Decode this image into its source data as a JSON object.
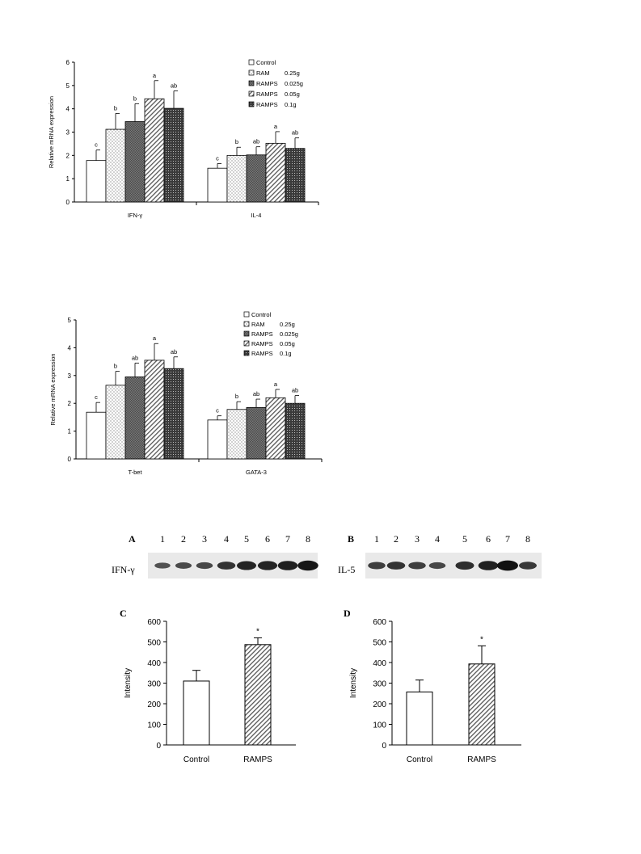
{
  "colors": {
    "axis": "#000000",
    "band": "#111111",
    "blot_bg": "#e9e9e9"
  },
  "chart_data": [
    {
      "id": "top",
      "type": "bar",
      "ylabel": "Relative mRNA expression",
      "ylim": [
        0,
        6
      ],
      "yticks": [
        "0",
        "1",
        "2",
        "3",
        "4",
        "5",
        "6"
      ],
      "categories": [
        "IFN-γ",
        "IL-4"
      ],
      "legend_position": "top-right",
      "series": [
        {
          "name": "Control",
          "dose": "",
          "pattern": "white",
          "values": [
            1.78,
            1.45
          ],
          "errors": [
            0.45,
            0.2
          ],
          "letters": [
            "c",
            "c"
          ]
        },
        {
          "name": "RAM",
          "dose": "0.25g",
          "pattern": "dots",
          "values": [
            3.12,
            2.0
          ],
          "errors": [
            0.68,
            0.35
          ],
          "letters": [
            "b",
            "b"
          ]
        },
        {
          "name": "RAMPS",
          "dose": "0.025g",
          "pattern": "dense",
          "values": [
            3.45,
            2.02
          ],
          "errors": [
            0.77,
            0.35
          ],
          "letters": [
            "b",
            "ab"
          ]
        },
        {
          "name": "RAMPS",
          "dose": "0.05g",
          "pattern": "diag",
          "values": [
            4.43,
            2.52
          ],
          "errors": [
            0.78,
            0.5
          ],
          "letters": [
            "a",
            "a"
          ]
        },
        {
          "name": "RAMPS",
          "dose": "0.1g",
          "pattern": "dark",
          "values": [
            4.02,
            2.3
          ],
          "errors": [
            0.75,
            0.45
          ],
          "letters": [
            "ab",
            "ab"
          ]
        }
      ]
    },
    {
      "id": "middle",
      "type": "bar",
      "ylabel": "Relative mRNA expression",
      "ylim": [
        0,
        5
      ],
      "yticks": [
        "0",
        "1",
        "2",
        "3",
        "4",
        "5"
      ],
      "categories": [
        "T-bet",
        "GATA-3"
      ],
      "legend_position": "top-right",
      "series": [
        {
          "name": "Control",
          "dose": "",
          "pattern": "white",
          "values": [
            1.68,
            1.4
          ],
          "errors": [
            0.35,
            0.15
          ],
          "letters": [
            "c",
            "c"
          ]
        },
        {
          "name": "RAM",
          "dose": "0.25g",
          "pattern": "dots",
          "values": [
            2.65,
            1.78
          ],
          "errors": [
            0.5,
            0.28
          ],
          "letters": [
            "b",
            "b"
          ]
        },
        {
          "name": "RAMPS",
          "dose": "0.025g",
          "pattern": "dense",
          "values": [
            2.95,
            1.85
          ],
          "errors": [
            0.5,
            0.3
          ],
          "letters": [
            "ab",
            "ab"
          ]
        },
        {
          "name": "RAMPS",
          "dose": "0.05g",
          "pattern": "diag",
          "values": [
            3.55,
            2.2
          ],
          "errors": [
            0.6,
            0.3
          ],
          "letters": [
            "a",
            "a"
          ]
        },
        {
          "name": "RAMPS",
          "dose": "0.1g",
          "pattern": "dark",
          "values": [
            3.25,
            2.0
          ],
          "errors": [
            0.42,
            0.28
          ],
          "letters": [
            "ab",
            "ab"
          ]
        }
      ]
    },
    {
      "id": "C",
      "type": "bar",
      "panel_label": "C",
      "ylabel": "Intensity",
      "ylim": [
        0,
        600
      ],
      "yticks": [
        "0",
        "100",
        "200",
        "300",
        "400",
        "500",
        "600"
      ],
      "categories": [
        "Control",
        "RAMPS"
      ],
      "values": [
        310,
        487
      ],
      "errors": [
        52,
        33
      ],
      "patterns": [
        "white",
        "diag"
      ],
      "annotations": [
        "",
        "*"
      ]
    },
    {
      "id": "D",
      "type": "bar",
      "panel_label": "D",
      "ylabel": "Intensity",
      "ylim": [
        0,
        600
      ],
      "yticks": [
        "0",
        "100",
        "200",
        "300",
        "400",
        "500",
        "600"
      ],
      "categories": [
        "Control",
        "RAMPS"
      ],
      "values": [
        257,
        393
      ],
      "errors": [
        58,
        88
      ],
      "patterns": [
        "white",
        "diag"
      ],
      "annotations": [
        "",
        "*"
      ]
    }
  ],
  "blots": [
    {
      "panel_label": "A",
      "row_label": "IFN-γ",
      "lanes": [
        "1",
        "2",
        "3",
        "4",
        "5",
        "6",
        "7",
        "8"
      ],
      "band_intensity": [
        0.35,
        0.42,
        0.45,
        0.65,
        0.8,
        0.82,
        0.85,
        0.95
      ]
    },
    {
      "panel_label": "B",
      "row_label": "IL-5",
      "lanes": [
        "1",
        "2",
        "3",
        "4",
        "5",
        "6",
        "7",
        "8"
      ],
      "band_intensity": [
        0.55,
        0.65,
        0.55,
        0.45,
        0.7,
        0.85,
        1.0,
        0.6
      ]
    }
  ]
}
